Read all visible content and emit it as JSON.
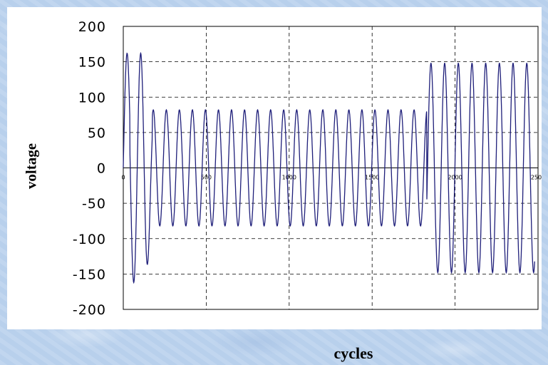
{
  "chart_data": {
    "type": "line",
    "title": "",
    "xlabel": "cycles",
    "ylabel": "voltage",
    "xlim": [
      0,
      2500
    ],
    "ylim": [
      -200,
      200
    ],
    "xticks": [
      0,
      500,
      1000,
      1500,
      2000,
      2500
    ],
    "yticks": [
      200,
      150,
      100,
      50,
      0,
      -50,
      -100,
      -150,
      -200
    ],
    "ytick_labels": [
      "200",
      "150",
      "100",
      "50",
      "0",
      "-50",
      "-100",
      "-150",
      "-200"
    ],
    "xtick_labels": [
      "0",
      "500",
      "1000",
      "1500",
      "2000",
      "2500"
    ],
    "grid": true,
    "legend": "none",
    "line_color": "#1f1f7a",
    "series": [
      {
        "description_segments": [
          {
            "x_start": 0,
            "x_end": 40,
            "amplitude": 162,
            "period": 100
          },
          {
            "x_start": 40,
            "x_end": 170,
            "amplitude": 90,
            "period": 100,
            "note": "transient decay"
          },
          {
            "x_start": 170,
            "x_end": 1830,
            "amplitude": 82,
            "period": 83
          },
          {
            "x_start": 1830,
            "x_end": 2500,
            "amplitude": 148,
            "period": 83
          }
        ],
        "peaks": [
          {
            "x": 23,
            "y": 162
          },
          {
            "x": 65,
            "y": -162
          },
          {
            "x": 107,
            "y": 162
          },
          {
            "x": 148,
            "y": -90
          },
          {
            "x": 190,
            "y": 84
          },
          {
            "x": 1855,
            "y": 150
          },
          {
            "x": 1896,
            "y": -150
          },
          {
            "x": 2450,
            "y": 146
          },
          {
            "x": 2483,
            "y": -145
          }
        ]
      }
    ]
  }
}
